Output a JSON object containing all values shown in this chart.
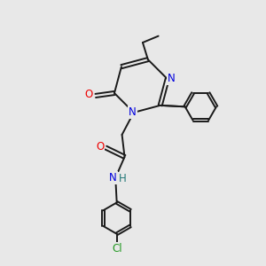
{
  "bg_color": "#e8e8e8",
  "bond_color": "#1a1a1a",
  "atom_colors": {
    "N": "#0000dd",
    "O": "#ee0000",
    "Cl": "#229922",
    "H": "#227777",
    "C": "#1a1a1a"
  },
  "lw": 1.4,
  "fs": 8.5
}
